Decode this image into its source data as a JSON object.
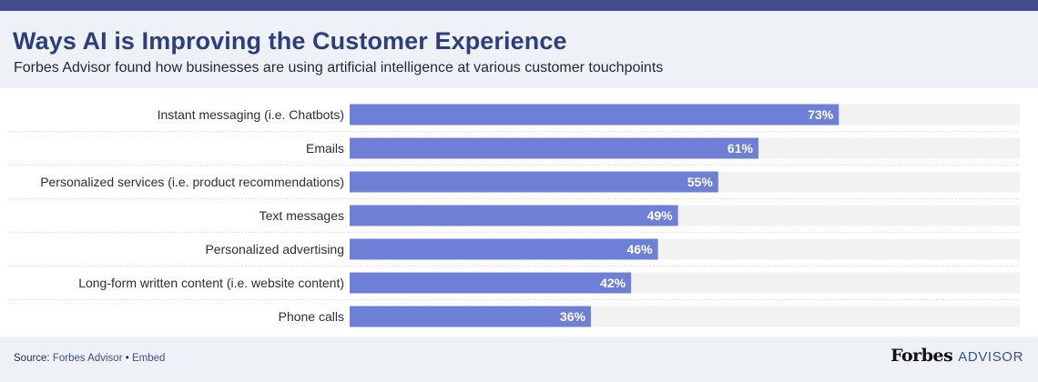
{
  "header": {
    "title": "Ways AI is Improving the Customer Experience",
    "subtitle": "Forbes Advisor found how businesses are using artificial intelligence at various customer touchpoints"
  },
  "footer": {
    "source_prefix": "Source: ",
    "source_name": "Forbes Advisor",
    "separator": " • ",
    "embed_label": "Embed",
    "brand_main": "Forbes",
    "brand_sub": "ADVISOR"
  },
  "colors": {
    "bar": "#6e80d6",
    "track": "#f2f2f2",
    "title": "#2d3e7d",
    "accent_bar": "#3f4d8a"
  },
  "chart_data": {
    "type": "bar",
    "orientation": "horizontal",
    "categories": [
      "Instant messaging (i.e. Chatbots)",
      "Emails",
      "Personalized services (i.e. product recommendations)",
      "Text messages",
      "Personalized advertising",
      "Long-form written content (i.e. website content)",
      "Phone calls"
    ],
    "values": [
      73,
      61,
      55,
      49,
      46,
      42,
      36
    ],
    "value_labels": [
      "73%",
      "61%",
      "55%",
      "49%",
      "46%",
      "42%",
      "36%"
    ],
    "xlim": [
      0,
      100
    ],
    "grid": false,
    "legend": "none"
  }
}
